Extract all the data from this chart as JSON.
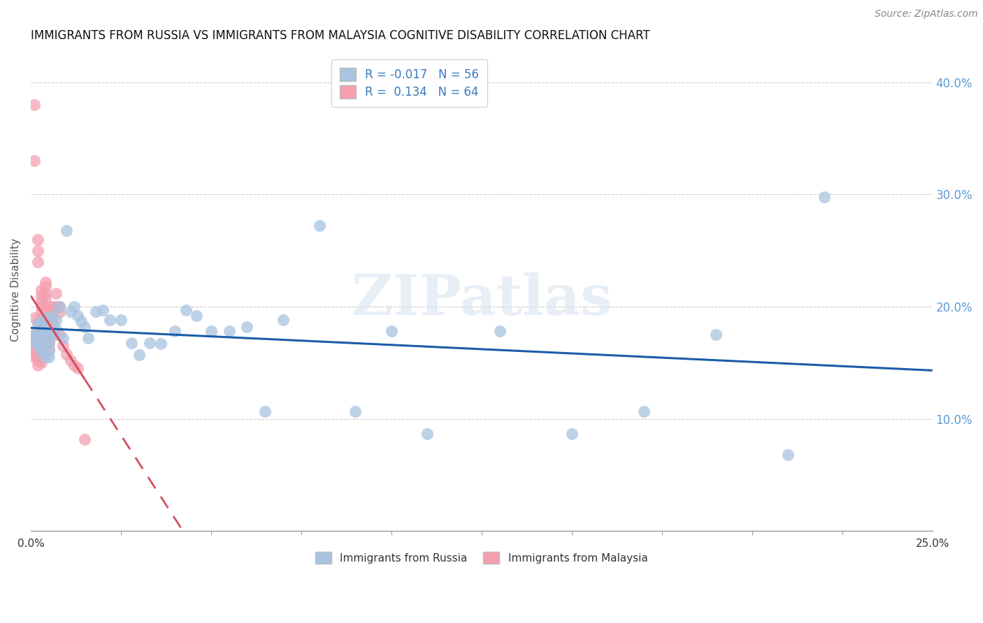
{
  "title": "IMMIGRANTS FROM RUSSIA VS IMMIGRANTS FROM MALAYSIA COGNITIVE DISABILITY CORRELATION CHART",
  "source": "Source: ZipAtlas.com",
  "ylabel": "Cognitive Disability",
  "y_ticks": [
    0.1,
    0.2,
    0.3,
    0.4
  ],
  "y_tick_labels": [
    "10.0%",
    "20.0%",
    "30.0%",
    "40.0%"
  ],
  "xlim": [
    0.0,
    0.25
  ],
  "ylim": [
    0.0,
    0.43
  ],
  "russia_R": -0.017,
  "russia_N": 56,
  "malaysia_R": 0.134,
  "malaysia_N": 64,
  "russia_color": "#a8c4e0",
  "malaysia_color": "#f4a0b0",
  "russia_line_color": "#1a5ca8",
  "malaysia_line_color": "#d45060",
  "watermark": "ZIPatlas",
  "russia_x": [
    0.001,
    0.001,
    0.002,
    0.002,
    0.002,
    0.003,
    0.003,
    0.003,
    0.003,
    0.004,
    0.004,
    0.004,
    0.004,
    0.005,
    0.005,
    0.005,
    0.005,
    0.006,
    0.006,
    0.007,
    0.007,
    0.008,
    0.009,
    0.01,
    0.011,
    0.012,
    0.013,
    0.014,
    0.015,
    0.016,
    0.018,
    0.02,
    0.022,
    0.025,
    0.028,
    0.03,
    0.033,
    0.036,
    0.04,
    0.043,
    0.046,
    0.05,
    0.055,
    0.06,
    0.065,
    0.07,
    0.08,
    0.09,
    0.1,
    0.11,
    0.13,
    0.15,
    0.17,
    0.19,
    0.21,
    0.22
  ],
  "russia_y": [
    0.175,
    0.17,
    0.185,
    0.175,
    0.165,
    0.185,
    0.175,
    0.165,
    0.16,
    0.19,
    0.18,
    0.168,
    0.155,
    0.175,
    0.168,
    0.16,
    0.155,
    0.192,
    0.175,
    0.188,
    0.18,
    0.2,
    0.172,
    0.268,
    0.196,
    0.2,
    0.192,
    0.187,
    0.182,
    0.172,
    0.196,
    0.197,
    0.188,
    0.188,
    0.168,
    0.157,
    0.168,
    0.167,
    0.178,
    0.197,
    0.192,
    0.178,
    0.178,
    0.182,
    0.107,
    0.188,
    0.272,
    0.107,
    0.178,
    0.087,
    0.178,
    0.087,
    0.107,
    0.175,
    0.068,
    0.298
  ],
  "malaysia_x": [
    0.001,
    0.001,
    0.001,
    0.001,
    0.001,
    0.001,
    0.001,
    0.001,
    0.002,
    0.002,
    0.002,
    0.002,
    0.002,
    0.002,
    0.002,
    0.002,
    0.002,
    0.002,
    0.002,
    0.003,
    0.003,
    0.003,
    0.003,
    0.003,
    0.003,
    0.003,
    0.003,
    0.003,
    0.003,
    0.003,
    0.003,
    0.004,
    0.004,
    0.004,
    0.004,
    0.004,
    0.004,
    0.004,
    0.004,
    0.004,
    0.005,
    0.005,
    0.005,
    0.005,
    0.005,
    0.005,
    0.005,
    0.005,
    0.006,
    0.006,
    0.006,
    0.006,
    0.007,
    0.007,
    0.007,
    0.008,
    0.008,
    0.008,
    0.009,
    0.01,
    0.011,
    0.012,
    0.013,
    0.015
  ],
  "malaysia_y": [
    0.175,
    0.17,
    0.165,
    0.16,
    0.155,
    0.19,
    0.38,
    0.33,
    0.185,
    0.175,
    0.168,
    0.162,
    0.158,
    0.155,
    0.152,
    0.148,
    0.26,
    0.25,
    0.24,
    0.215,
    0.21,
    0.205,
    0.2,
    0.195,
    0.19,
    0.185,
    0.18,
    0.172,
    0.165,
    0.158,
    0.15,
    0.222,
    0.218,
    0.212,
    0.208,
    0.2,
    0.195,
    0.188,
    0.182,
    0.175,
    0.2,
    0.195,
    0.19,
    0.185,
    0.178,
    0.172,
    0.168,
    0.162,
    0.2,
    0.195,
    0.19,
    0.185,
    0.212,
    0.2,
    0.175,
    0.2,
    0.195,
    0.175,
    0.165,
    0.158,
    0.152,
    0.148,
    0.145,
    0.082
  ]
}
